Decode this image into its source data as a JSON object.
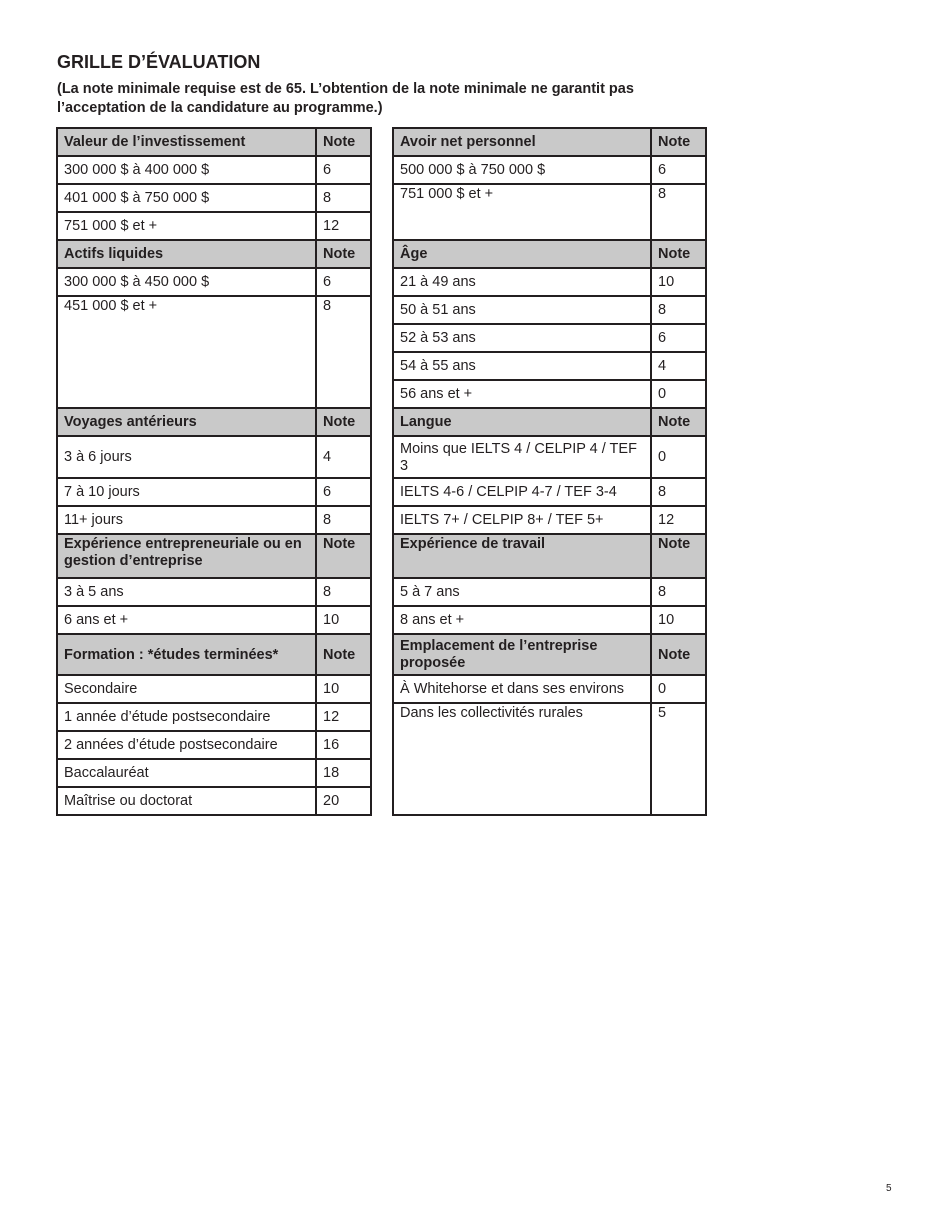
{
  "title": "GRILLE D’ÉVALUATION",
  "subtitle": "(La note minimale requise est de 65. L’obtention de la note minimale ne garantit pas l’acceptation de la candidature au programme.)",
  "left_column": [
    {
      "header": "Valeur de l’investissement",
      "note_label": "Note",
      "rows": [
        {
          "label": "300 000 $ à 400 000 $",
          "note": "6"
        },
        {
          "label": "401 000 $ à 750 000 $",
          "note": "8"
        },
        {
          "label": "751 000 $ et +",
          "note": "12"
        }
      ]
    },
    {
      "header": "Actifs liquides",
      "note_label": "Note",
      "rows": [
        {
          "label": "300 000 $ à 450 000 $",
          "note": "6"
        },
        {
          "label": "451 000 $ et +",
          "note": "8"
        }
      ]
    },
    {
      "header": "Voyages antérieurs",
      "note_label": "Note",
      "rows": [
        {
          "label": "3 à 6 jours",
          "note": "4"
        },
        {
          "label": "7 à 10 jours",
          "note": "6"
        },
        {
          "label": "11+ jours",
          "note": "8"
        }
      ]
    },
    {
      "header": "Expérience entrepreneuriale ou en gestion d’entreprise",
      "note_label": "Note",
      "rows": [
        {
          "label": "3 à 5 ans",
          "note": "8"
        },
        {
          "label": "6 ans et +",
          "note": "10"
        }
      ]
    },
    {
      "header": "Formation : *études terminées*",
      "note_label": "Note",
      "rows": [
        {
          "label": "Secondaire",
          "note": "10"
        },
        {
          "label": "1 année d’étude postsecondaire",
          "note": "12"
        },
        {
          "label": "2 années d’étude postsecondaire",
          "note": "16"
        },
        {
          "label": "Baccalauréat",
          "note": "18"
        },
        {
          "label": "Maîtrise ou doctorat",
          "note": "20"
        }
      ]
    }
  ],
  "right_column": [
    {
      "header": "Avoir net personnel",
      "note_label": "Note",
      "rows": [
        {
          "label": "500 000 $ à 750 000 $",
          "note": "6"
        },
        {
          "label": "751 000 $ et +",
          "note": "8"
        }
      ]
    },
    {
      "header": "Âge",
      "note_label": "Note",
      "rows": [
        {
          "label": "21 à 49 ans",
          "note": "10"
        },
        {
          "label": "50 à 51 ans",
          "note": "8"
        },
        {
          "label": "52 à 53 ans",
          "note": "6"
        },
        {
          "label": "54 à 55 ans",
          "note": "4"
        },
        {
          "label": "56 ans et +",
          "note": "0"
        }
      ]
    },
    {
      "header": "Langue",
      "note_label": "Note",
      "rows": [
        {
          "label": "Moins que IELTS 4 / CELPIP 4 / TEF 3",
          "note": "0"
        },
        {
          "label": "IELTS 4-6 / CELPIP 4-7 / TEF 3-4",
          "note": "8"
        },
        {
          "label": "IELTS 7+ / CELPIP 8+ / TEF 5+",
          "note": "12"
        }
      ]
    },
    {
      "header": "Expérience de travail",
      "note_label": "Note",
      "rows": [
        {
          "label": "5 à 7 ans",
          "note": "8"
        },
        {
          "label": "8 ans et +",
          "note": "10"
        }
      ]
    },
    {
      "header": "Emplacement de l’entreprise proposée",
      "note_label": "Note",
      "rows": [
        {
          "label": "À Whitehorse et dans ses environs",
          "note": "0"
        },
        {
          "label": "Dans les collectivités rurales",
          "note": "5"
        }
      ]
    }
  ],
  "page_number": "5"
}
